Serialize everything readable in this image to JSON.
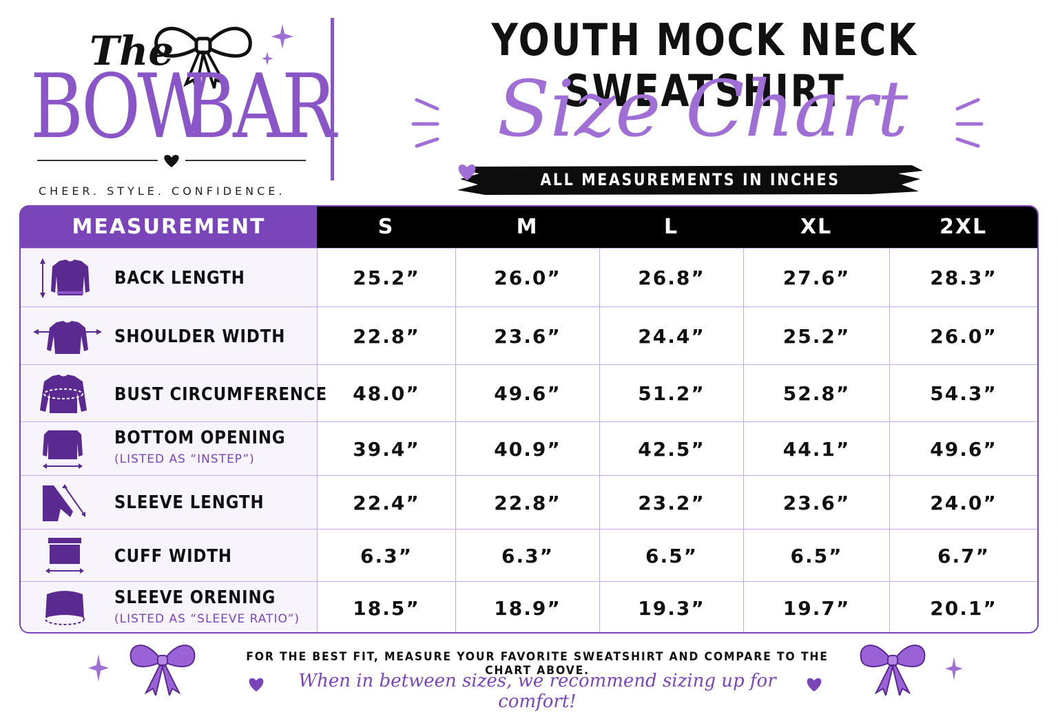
{
  "brand": {
    "the": "The",
    "bow": "BOW",
    "bar": "BAR",
    "tagline": "CHEER. STYLE. CONFIDENCE."
  },
  "title": "YOUTH MOCK NECK SWEATSHIRT",
  "subtitle": "Size Chart",
  "units_banner": "ALL MEASUREMENTS IN INCHES",
  "table": {
    "headers": [
      "MEASUREMENT",
      "S",
      "M",
      "L",
      "XL",
      "2XL"
    ],
    "rows": [
      {
        "name": "BACK LENGTH",
        "note": "",
        "icon": "sweatshirt-length-icon",
        "values": [
          "25.2”",
          "26.0”",
          "26.8”",
          "27.6”",
          "28.3”"
        ]
      },
      {
        "name": "SHOULDER WIDTH",
        "note": "",
        "icon": "sweatshirt-shoulder-icon",
        "values": [
          "22.8”",
          "23.6”",
          "24.4”",
          "25.2”",
          "26.0”"
        ]
      },
      {
        "name": "BUST CIRCUMFERENCE",
        "note": "",
        "icon": "sweatshirt-bust-icon",
        "values": [
          "48.0”",
          "49.6”",
          "51.2”",
          "52.8”",
          "54.3”"
        ]
      },
      {
        "name": "BOTTOM OPENING",
        "note": "(LISTED AS “INSTEP”)",
        "icon": "sweatshirt-bottom-icon",
        "values": [
          "39.4”",
          "40.9”",
          "42.5”",
          "44.1”",
          "49.6”"
        ]
      },
      {
        "name": "SLEEVE LENGTH",
        "note": "",
        "icon": "sleeve-length-icon",
        "values": [
          "22.4”",
          "22.8”",
          "23.2”",
          "23.6”",
          "24.0”"
        ]
      },
      {
        "name": "CUFF WIDTH",
        "note": "",
        "icon": "cuff-width-icon",
        "values": [
          "6.3”",
          "6.3”",
          "6.5”",
          "6.5”",
          "6.7”"
        ]
      },
      {
        "name": "SLEEVE ORENING",
        "note": "(LISTED AS “SLEEVE RATIO”)",
        "icon": "sleeve-opening-icon",
        "values": [
          "18.5”",
          "18.9”",
          "19.3”",
          "19.7”",
          "20.1”"
        ]
      }
    ]
  },
  "footer": {
    "note": "FOR THE BEST FIT, MEASURE YOUR FAVORITE SWEATSHIRT AND COMPARE TO THE CHART ABOVE.",
    "script": "When in between sizes, we recommend sizing up for comfort!"
  },
  "colors": {
    "purple": "#7a45b8",
    "light_purple": "#a06fd6",
    "black": "#000000"
  }
}
